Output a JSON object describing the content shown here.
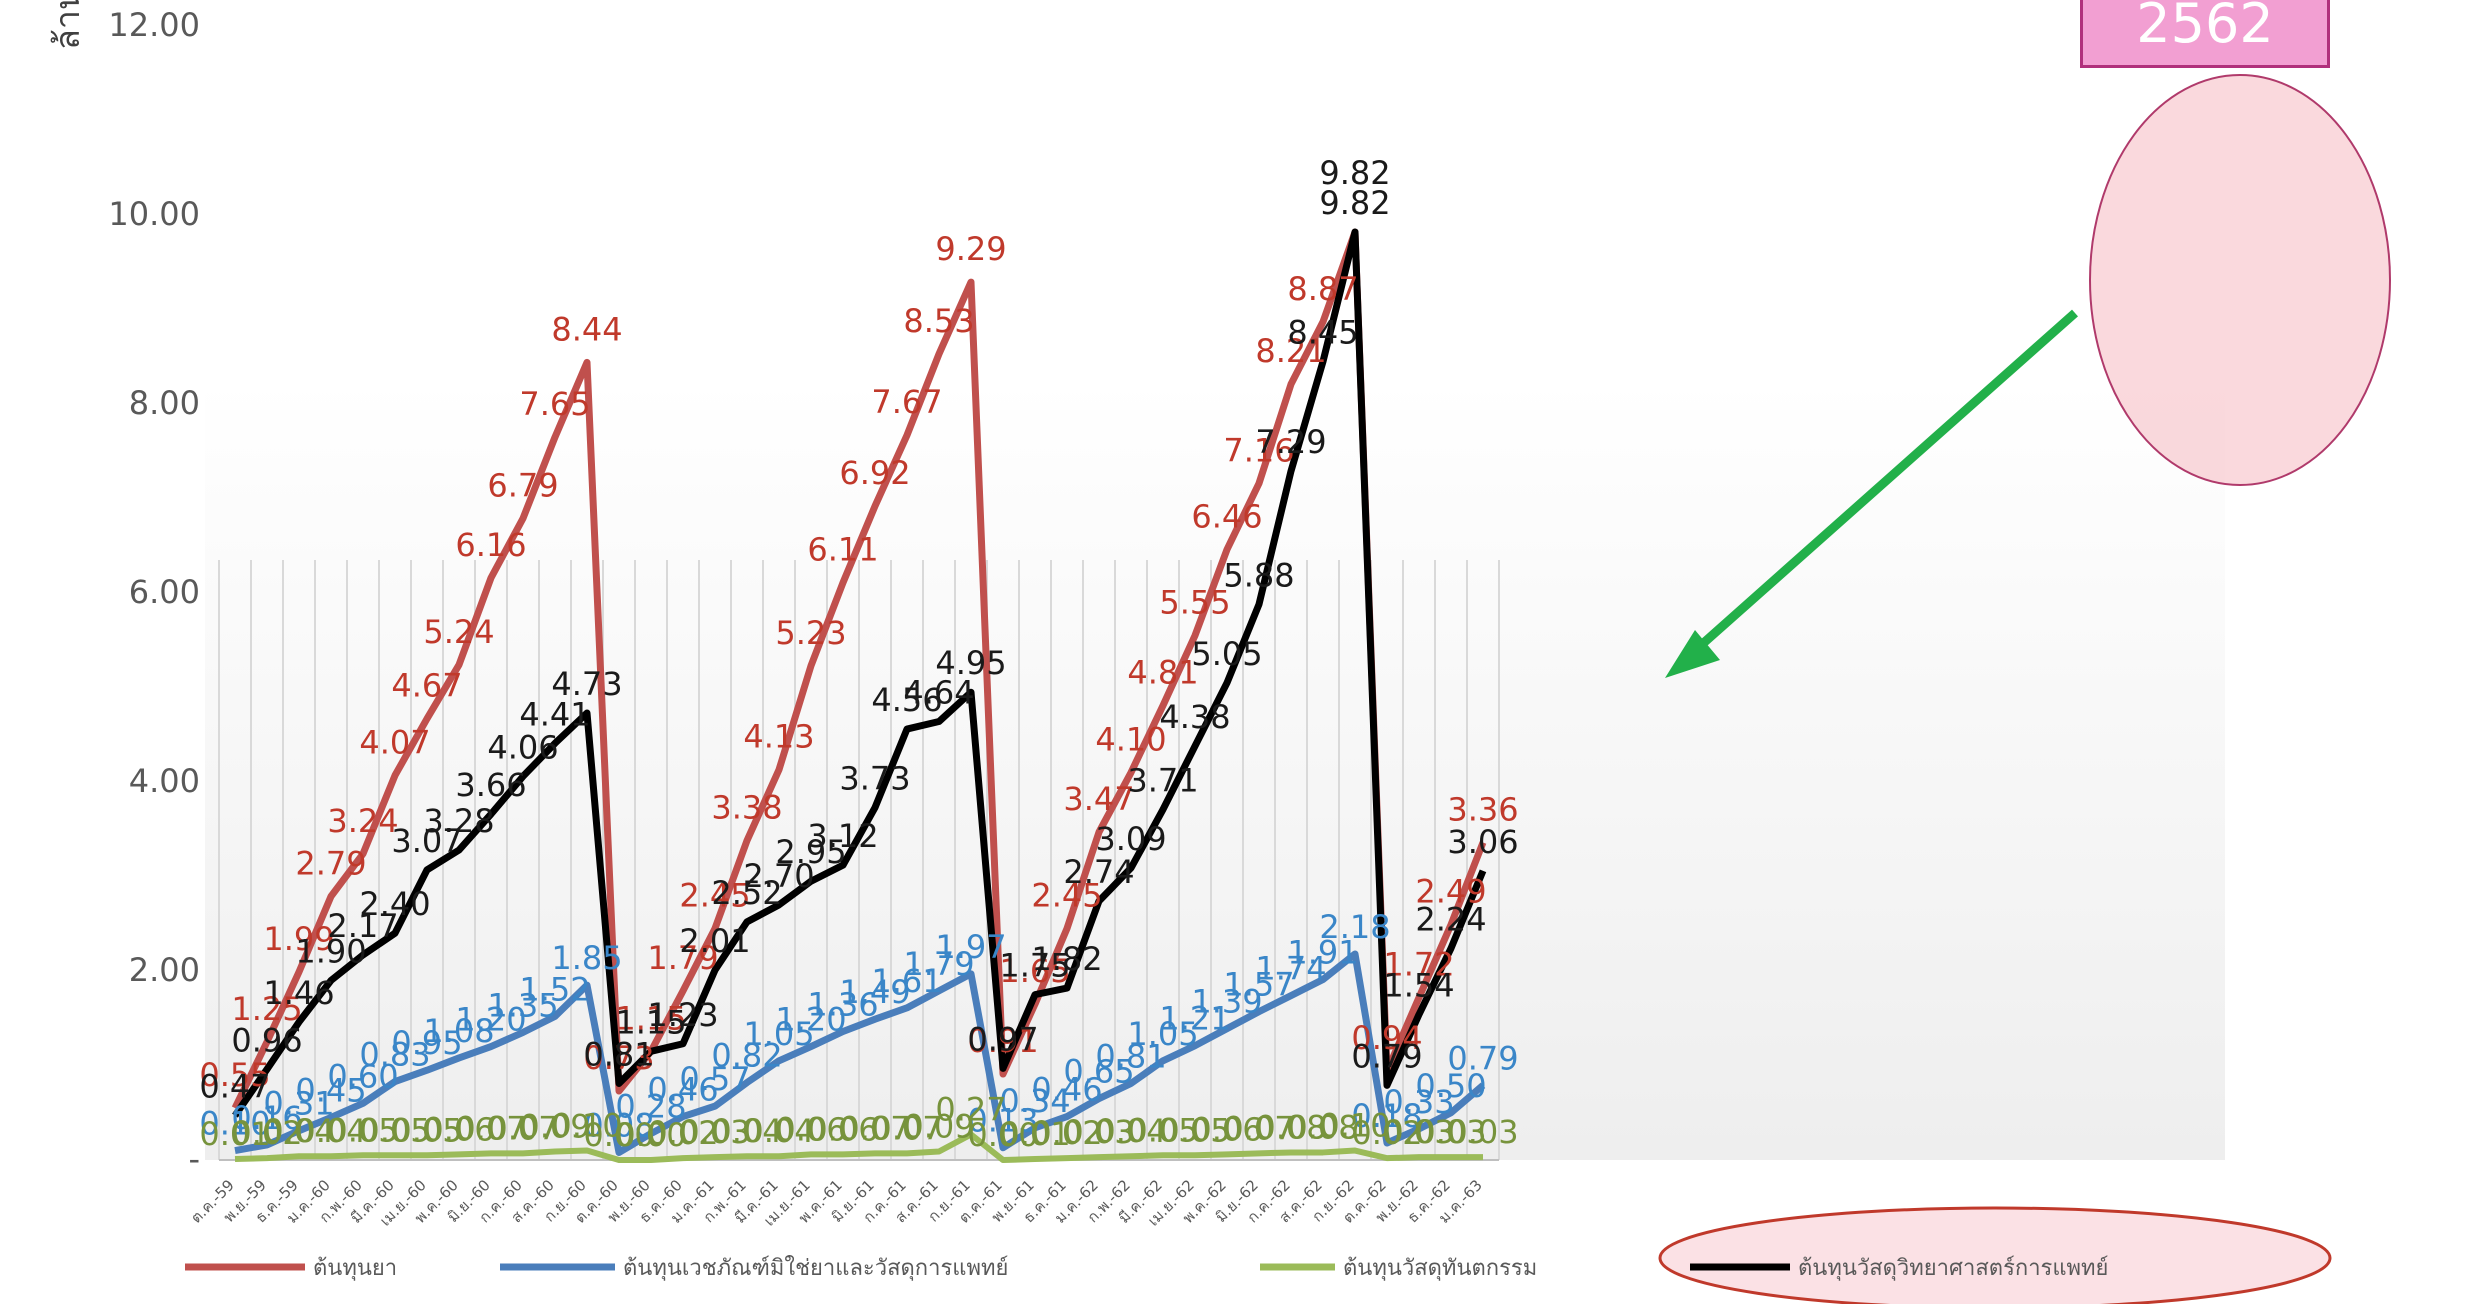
{
  "chart_data": {
    "type": "line",
    "title": "",
    "ylabel": "ล้าน",
    "xlabel": "",
    "ylim": [
      0,
      12
    ],
    "yticks": [
      "-",
      "2.00",
      "4.00",
      "6.00",
      "8.00",
      "10.00",
      "12.00"
    ],
    "grid": "vertical",
    "legend_position": "bottom",
    "categories": [
      "ต.ค.-59",
      "พ.ย.-59",
      "ธ.ค.-59",
      "ม.ค.-60",
      "ก.พ.-60",
      "มี.ค.-60",
      "เม.ย.-60",
      "พ.ค.-60",
      "มิ.ย.-60",
      "ก.ค.-60",
      "ส.ค.-60",
      "ก.ย.-60",
      "ต.ค.-60",
      "พ.ย.-60",
      "ธ.ค.-60",
      "ม.ค.-61",
      "ก.พ.-61",
      "มี.ค.-61",
      "เม.ย.-61",
      "พ.ค.-61",
      "มิ.ย.-61",
      "ก.ค.-61",
      "ส.ค.-61",
      "ก.ย.-61",
      "ต.ค.-61",
      "พ.ย.-61",
      "ธ.ค.-61",
      "ม.ค.-62",
      "ก.พ.-62",
      "มี.ค.-62",
      "เม.ย.-62",
      "พ.ค.-62",
      "มิ.ย.-62",
      "ก.ค.-62",
      "ส.ค.-62",
      "ก.ย.-62",
      "ต.ค.-62",
      "พ.ย.-62",
      "ธ.ค.-62",
      "ม.ค.-63"
    ],
    "series": [
      {
        "name": "ต้นทุนยา",
        "color": "#c0504d",
        "values": [
          0.55,
          1.25,
          1.99,
          2.79,
          3.24,
          4.07,
          4.67,
          5.24,
          6.16,
          6.79,
          7.65,
          8.44,
          0.73,
          1.15,
          1.79,
          2.45,
          3.38,
          4.13,
          5.23,
          6.11,
          6.92,
          7.67,
          8.53,
          9.29,
          0.91,
          1.65,
          2.45,
          3.47,
          4.1,
          4.81,
          5.55,
          6.46,
          7.16,
          8.21,
          8.87,
          9.82,
          0.94,
          1.72,
          2.49,
          3.36
        ],
        "labels": [
          "0.55",
          "1.25",
          "1.99",
          "2.79",
          "3.24",
          "4.07",
          "4.67",
          "5.24",
          "6.16",
          "6.79",
          "7.65",
          "8.44",
          "0.73",
          "1.15",
          "1.79",
          "2.45",
          "3.38",
          "4.13",
          "5.23",
          "6.11",
          "6.92",
          "7.67",
          "8.53",
          "9.29",
          "0.91",
          "1.65",
          "2.45",
          "3.47",
          "4.10",
          "4.81",
          "5.55",
          "6.46",
          "7.16",
          "8.21",
          "8.87",
          "",
          "0.94",
          "1.72",
          "2.49",
          "3.36"
        ]
      },
      {
        "name": "ต้นทุนเวชภัณฑ์มิใช่ยาและวัสดุการแพทย์",
        "color": "#4a7ebb",
        "values": [
          0.1,
          0.16,
          0.31,
          0.45,
          0.6,
          0.83,
          0.95,
          1.08,
          1.2,
          1.35,
          1.52,
          1.85,
          0.08,
          0.28,
          0.46,
          0.57,
          0.82,
          1.05,
          1.2,
          1.36,
          1.49,
          1.61,
          1.79,
          1.97,
          0.13,
          0.34,
          0.46,
          0.65,
          0.81,
          1.05,
          1.21,
          1.39,
          1.57,
          1.74,
          1.91,
          2.18,
          0.18,
          0.33,
          0.5,
          0.79
        ],
        "labels": [
          "0.10",
          "0.16",
          "0.31",
          "0.45",
          "0.60",
          "0.83",
          "0.95",
          "1.08",
          "1.20",
          "1.35",
          "1.52",
          "1.85",
          "0.08",
          "0.28",
          "0.46",
          "0.57",
          "0.82",
          "1.05",
          "1.20",
          "1.36",
          "1.49",
          "1.61",
          "1.79",
          "1.97",
          "0.13",
          "0.34",
          "0.46",
          "0.65",
          "0.81",
          "1.05",
          "1.21",
          "1.39",
          "1.57",
          "1.74",
          "1.91",
          "2.18",
          "0.18",
          "0.33",
          "0.50",
          "0.79"
        ]
      },
      {
        "name": "ต้นทุนวัสดุทันตกรรม",
        "color": "#9bbb59",
        "values": [
          0.01,
          0.02,
          0.04,
          0.04,
          0.05,
          0.05,
          0.05,
          0.06,
          0.07,
          0.07,
          0.09,
          0.1,
          0.0,
          0.0,
          0.02,
          0.03,
          0.04,
          0.04,
          0.06,
          0.06,
          0.07,
          0.07,
          0.09,
          0.27,
          0.0,
          0.01,
          0.02,
          0.03,
          0.04,
          0.05,
          0.05,
          0.06,
          0.07,
          0.08,
          0.08,
          0.1,
          0.02,
          0.03,
          0.03,
          0.03
        ],
        "labels": [
          "0.01",
          "0.02",
          "0.04",
          "0.04",
          "0.05",
          "0.05",
          "0.05",
          "0.06",
          "0.07",
          "0.07",
          "0.09",
          "0.10",
          "0.00",
          "0.00",
          "0.02",
          "0.03",
          "0.04",
          "0.04",
          "0.06",
          "0.06",
          "0.07",
          "0.07",
          "0.09",
          "0.27",
          "0.00",
          "0.01",
          "0.02",
          "0.03",
          "0.04",
          "0.05",
          "0.05",
          "0.06",
          "0.07",
          "0.08",
          "0.08",
          "0.10",
          "0.02",
          "0.03",
          "0.03",
          "0.03"
        ]
      },
      {
        "name": "ต้นทุนวัสดุวิทยาศาสตร์การแพทย์",
        "color": "#000000",
        "values": [
          0.47,
          0.96,
          1.46,
          1.9,
          2.17,
          2.4,
          3.07,
          3.28,
          3.66,
          4.06,
          4.41,
          4.73,
          0.81,
          1.15,
          1.23,
          2.01,
          2.52,
          2.7,
          2.95,
          3.12,
          3.73,
          4.56,
          4.64,
          4.95,
          0.97,
          1.75,
          1.82,
          2.74,
          3.09,
          3.71,
          4.38,
          5.05,
          5.88,
          7.29,
          8.45,
          9.82,
          0.79,
          1.54,
          2.24,
          3.06
        ],
        "labels": [
          "0.47",
          "0.96",
          "1.46",
          "1.90",
          "2.17",
          "2.40",
          "3.07",
          "3.28",
          "3.66",
          "4.06",
          "4.41",
          "4.73",
          "0.81",
          "1.15",
          "1.23",
          "2.01",
          "2.52",
          "2.70",
          "2.95",
          "3.12",
          "3.73",
          "4.56",
          "4.64",
          "4.95",
          "0.97",
          "1.75",
          "1.82",
          "2.74",
          "3.09",
          "3.71",
          "4.38",
          "5.05",
          "5.88",
          "7.29",
          "8.45",
          "9.82",
          "0.79",
          "1.54",
          "2.24",
          "3.06"
        ]
      }
    ],
    "annotations": {
      "year_box": "2562"
    }
  }
}
